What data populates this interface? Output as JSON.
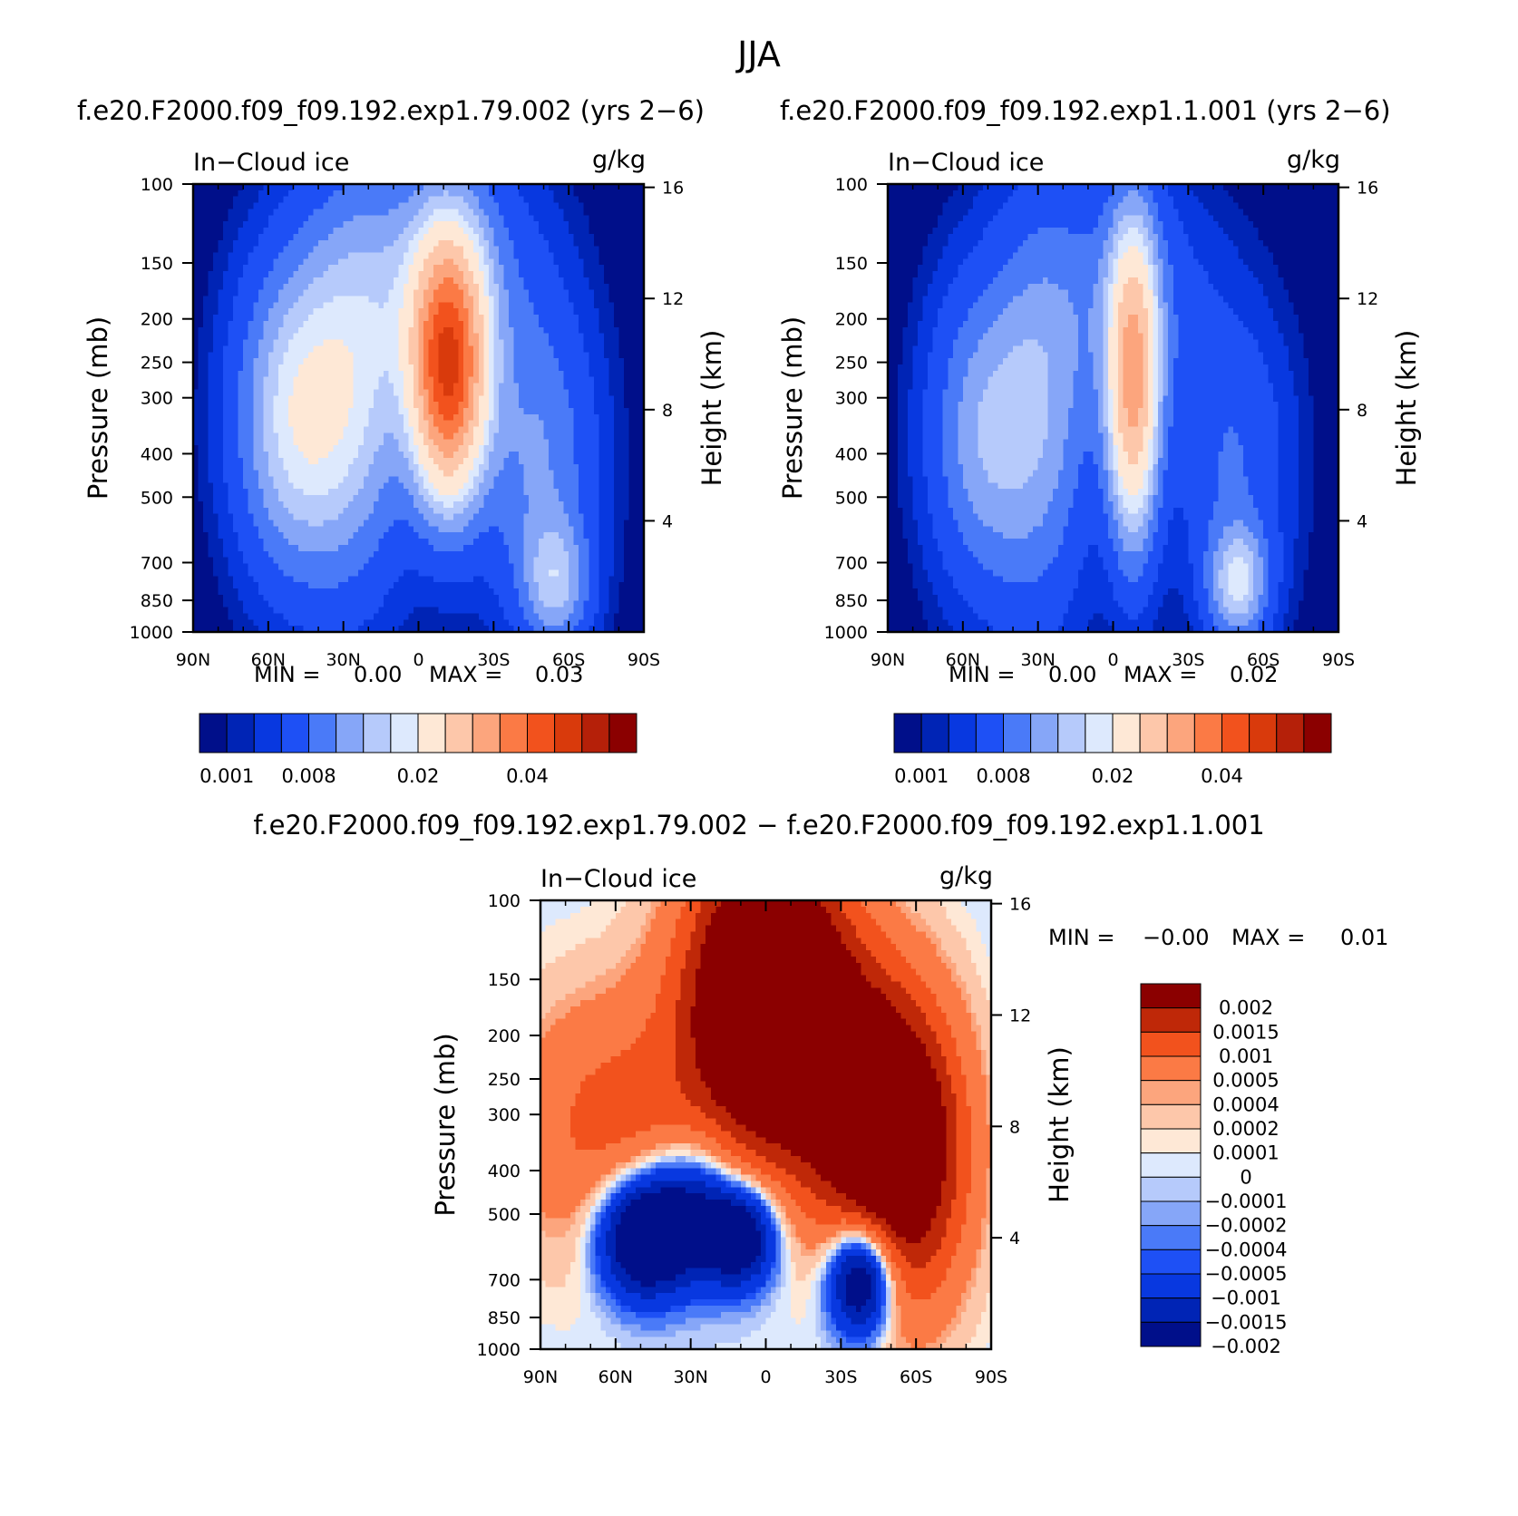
{
  "figure": {
    "title": "JJA",
    "run_left": "f.e20.F2000.f09_f09.192.exp1.79.002 (yrs 2−6)",
    "run_right": "f.e20.F2000.f09_f09.192.exp1.1.001 (yrs 2−6)",
    "diff_title": "f.e20.F2000.f09_f09.192.exp1.79.002 − f.e20.F2000.f09_f09.192.exp1.1.001"
  },
  "colors": {
    "abs_scale": [
      "#000f8a",
      "#0024b5",
      "#0838e0",
      "#1e50f5",
      "#4a7af8",
      "#86a6f8",
      "#b6cafb",
      "#dde9fd",
      "#fee8d6",
      "#fdc7aa",
      "#fca57d",
      "#fb7a45",
      "#f2521d",
      "#d93a0c",
      "#b52009",
      "#8b0000"
    ],
    "diff_scale": [
      "#8b0000",
      "#bf2808",
      "#f2521d",
      "#fb7a45",
      "#fca57d",
      "#fdc7aa",
      "#fee8d6",
      "#dde9fd",
      "#b6cafb",
      "#86a6f8",
      "#4a7af8",
      "#1e50f5",
      "#0838e0",
      "#0024b5",
      "#000f8a"
    ]
  },
  "chart_data": [
    {
      "type": "heatmap",
      "panel": "top-left",
      "field_label": "In−Cloud ice",
      "units": "g/kg",
      "ylabel": "Pressure (mb)",
      "y2label": "Height (km)",
      "x_ticks": [
        "90N",
        "60N",
        "30N",
        "0",
        "30S",
        "60S",
        "90S"
      ],
      "y_ticks": [
        100,
        150,
        200,
        250,
        300,
        400,
        500,
        700,
        850,
        1000
      ],
      "y2_ticks": [
        16,
        12,
        8,
        4
      ],
      "ylim": [
        1000,
        100
      ],
      "y_scale": "log",
      "stats": {
        "min_label": "MIN =",
        "min": "0.00",
        "max_label": "MAX =",
        "max": "0.03"
      },
      "colorbar_labels": [
        "0.001",
        "0.008",
        "0.02",
        "0.04"
      ],
      "blobs": [
        {
          "lat": -12,
          "p": 260,
          "peak": 0.03,
          "wl": 10,
          "wp": 0.45
        },
        {
          "lat": 50,
          "p": 330,
          "peak": 0.01,
          "wl": 16,
          "wp": 0.55
        },
        {
          "lat": 25,
          "p": 280,
          "peak": 0.008,
          "wl": 16,
          "wp": 0.7
        },
        {
          "lat": -10,
          "p": 160,
          "peak": 0.006,
          "wl": 24,
          "wp": 0.45
        },
        {
          "lat": -48,
          "p": 420,
          "peak": 0.006,
          "wl": 16,
          "wp": 0.55
        },
        {
          "lat": -55,
          "p": 780,
          "peak": 0.007,
          "wl": 9,
          "wp": 0.22
        }
      ]
    },
    {
      "type": "heatmap",
      "panel": "top-right",
      "field_label": "In−Cloud ice",
      "units": "g/kg",
      "ylabel": "Pressure (mb)",
      "y2label": "Height (km)",
      "x_ticks": [
        "90N",
        "60N",
        "30N",
        "0",
        "30S",
        "60S",
        "90S"
      ],
      "y_ticks": [
        100,
        150,
        200,
        250,
        300,
        400,
        500,
        700,
        850,
        1000
      ],
      "y2_ticks": [
        16,
        12,
        8,
        4
      ],
      "ylim": [
        1000,
        100
      ],
      "y_scale": "log",
      "stats": {
        "min_label": "MIN =",
        "min": "0.00",
        "max_label": "MAX =",
        "max": "0.02"
      },
      "colorbar_labels": [
        "0.001",
        "0.008",
        "0.02",
        "0.04"
      ],
      "blobs": [
        {
          "lat": -8,
          "p": 280,
          "peak": 0.02,
          "wl": 7,
          "wp": 0.55
        },
        {
          "lat": 52,
          "p": 360,
          "peak": 0.007,
          "wl": 15,
          "wp": 0.55
        },
        {
          "lat": 28,
          "p": 320,
          "peak": 0.006,
          "wl": 14,
          "wp": 0.75
        },
        {
          "lat": -5,
          "p": 180,
          "peak": 0.004,
          "wl": 22,
          "wp": 0.45
        },
        {
          "lat": -48,
          "p": 420,
          "peak": 0.004,
          "wl": 16,
          "wp": 0.55
        },
        {
          "lat": -50,
          "p": 780,
          "peak": 0.009,
          "wl": 8,
          "wp": 0.2
        }
      ]
    },
    {
      "type": "heatmap",
      "panel": "bottom-difference",
      "field_label": "In−Cloud ice",
      "units": "g/kg",
      "ylabel": "Pressure (mb)",
      "y2label": "Height (km)",
      "x_ticks": [
        "90N",
        "60N",
        "30N",
        "0",
        "30S",
        "60S",
        "90S"
      ],
      "y_ticks": [
        100,
        150,
        200,
        250,
        300,
        400,
        500,
        700,
        850,
        1000
      ],
      "y2_ticks": [
        16,
        12,
        8,
        4
      ],
      "ylim": [
        1000,
        100
      ],
      "y_scale": "log",
      "stats": {
        "min_label": "MIN =",
        "min": "−0.00",
        "max_label": "MAX =",
        "max": "0.01"
      },
      "colorbar_labels": [
        "0.002",
        "0.0015",
        "0.001",
        "0.0005",
        "0.0004",
        "0.0002",
        "0.0001",
        "0",
        "−0.0001",
        "−0.0002",
        "−0.0004",
        "−0.0005",
        "−0.001",
        "−0.0015",
        "−0.002"
      ],
      "blobs": [
        {
          "lat": 0,
          "p": 160,
          "peak": 0.004,
          "wl": 22,
          "wp": 0.55
        },
        {
          "lat": -55,
          "p": 360,
          "peak": 0.003,
          "wl": 18,
          "wp": 0.55
        },
        {
          "lat": 60,
          "p": 320,
          "peak": 0.0012,
          "wl": 30,
          "wp": 0.5
        },
        {
          "lat": -30,
          "p": 260,
          "peak": 0.0015,
          "wl": 18,
          "wp": 0.5
        },
        {
          "lat": 50,
          "p": 560,
          "peak": -0.003,
          "wl": 12,
          "wp": 0.22
        },
        {
          "lat": 30,
          "p": 500,
          "peak": -0.002,
          "wl": 12,
          "wp": 0.25
        },
        {
          "lat": 10,
          "p": 560,
          "peak": -0.0025,
          "wl": 10,
          "wp": 0.18
        },
        {
          "lat": -38,
          "p": 700,
          "peak": -0.003,
          "wl": 9,
          "wp": 0.2
        }
      ]
    }
  ]
}
